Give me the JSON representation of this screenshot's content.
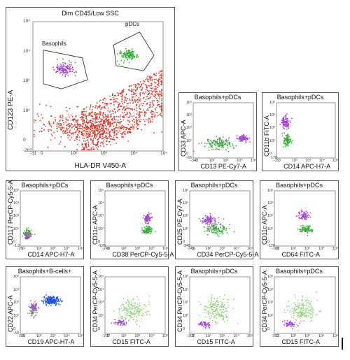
{
  "colors": {
    "granulocytes": "#d93a2b",
    "basophils": "#a23fd6",
    "pdcs": "#2faa2f",
    "green_light": "#8fd07a",
    "bcells": "#1f4fd9",
    "gray": "#8a8a8a",
    "frame": "#555555"
  },
  "chart_data": [
    {
      "type": "scatter",
      "title": "Dim CD45/Low SSC",
      "xlabel": "HLA-DR V450-A",
      "ylabel": "CD123 PE-A",
      "xticks": [
        "-31",
        "0",
        "10²",
        "10³",
        "10⁴",
        "10⁵"
      ],
      "yticks": [
        "-282",
        "0",
        "10²",
        "10³",
        "10⁴",
        "10⁵"
      ],
      "gates": [
        "Basophils",
        "pDCs"
      ],
      "series": [
        {
          "color": "granulocytes",
          "cluster": [
            0.7,
            0.3,
            0.25,
            0.17
          ],
          "n": 900
        },
        {
          "color": "granulocytes",
          "cluster": [
            0.4,
            0.18,
            0.3,
            0.1
          ],
          "n": 500
        },
        {
          "color": "basophils",
          "cluster": [
            0.24,
            0.63,
            0.06,
            0.04
          ],
          "n": 120
        },
        {
          "color": "pdcs",
          "cluster": [
            0.73,
            0.74,
            0.06,
            0.04
          ],
          "n": 110
        }
      ]
    },
    {
      "type": "scatter",
      "title": "Basophils+pDCs",
      "xlabel": "CD13 PE-Cy7-A",
      "ylabel": "CD33 APC-A",
      "xticks": [
        "-342",
        "0",
        "10²",
        "10³",
        "10⁴",
        "10⁵"
      ],
      "yticks": [
        "-65",
        "0",
        "10²",
        "10³",
        "10⁴",
        "10⁵"
      ],
      "series": [
        {
          "color": "pdcs",
          "cluster": [
            0.4,
            0.25,
            0.2,
            0.08
          ],
          "n": 130
        },
        {
          "color": "gray",
          "cluster": [
            0.5,
            0.3,
            0.1,
            0.05
          ],
          "n": 25
        },
        {
          "color": "basophils",
          "cluster": [
            0.82,
            0.35,
            0.07,
            0.05
          ],
          "n": 80
        }
      ]
    },
    {
      "type": "scatter",
      "title": "Basophils+pDCs",
      "xlabel": "CD14 APC-H7-A",
      "ylabel": "CD11b FITC-A",
      "xticks": [
        "-29",
        "0",
        "10²",
        "10³",
        "10⁴",
        "10⁵"
      ],
      "yticks": [
        "-178",
        "0",
        "10²",
        "10³",
        "10⁴",
        "10⁵"
      ],
      "series": [
        {
          "color": "basophils",
          "cluster": [
            0.15,
            0.65,
            0.06,
            0.1
          ],
          "n": 100
        },
        {
          "color": "pdcs",
          "cluster": [
            0.18,
            0.32,
            0.05,
            0.08
          ],
          "n": 90
        }
      ]
    },
    {
      "type": "scatter",
      "title": "Basophils+pDCs",
      "xlabel": "CD14 APC-H7-A",
      "ylabel": "CD117 PerCP-Cy5-5-A",
      "xticks": [
        "-29",
        "0",
        "10²",
        "10³",
        "10⁴",
        "10⁵"
      ],
      "yticks": [
        "-1.0",
        "0",
        "10²",
        "10³",
        "10⁴",
        "10⁵"
      ],
      "series": [
        {
          "color": "pdcs",
          "cluster": [
            0.12,
            0.22,
            0.05,
            0.06
          ],
          "n": 90
        },
        {
          "color": "basophils",
          "cluster": [
            0.12,
            0.18,
            0.04,
            0.04
          ],
          "n": 60
        },
        {
          "color": "gray",
          "cluster": [
            0.14,
            0.2,
            0.05,
            0.05
          ],
          "n": 30
        }
      ]
    },
    {
      "type": "scatter",
      "title": "Basophils+pDCs",
      "xlabel": "CD38 PerCP-Cy5-5-A",
      "ylabel": "CD11c APC-A",
      "xticks": [
        "-243",
        "0",
        "10²",
        "10³",
        "10⁴",
        "10⁵"
      ],
      "yticks": [
        "-126",
        "0",
        "10²",
        "10³",
        "10⁴",
        "10⁵"
      ],
      "series": [
        {
          "color": "basophils",
          "cluster": [
            0.7,
            0.5,
            0.05,
            0.07
          ],
          "n": 80
        },
        {
          "color": "pdcs",
          "cluster": [
            0.7,
            0.28,
            0.06,
            0.06
          ],
          "n": 90
        }
      ]
    },
    {
      "type": "scatter",
      "title": "Basophils+pDCs",
      "xlabel": "CD34 PerCP-Cy5-5-A",
      "ylabel": "CD25 PE-Cy7-A",
      "xticks": [
        "-243",
        "0",
        "10²",
        "10³",
        "10⁴",
        "10⁵"
      ],
      "yticks": [
        "-340",
        "0",
        "10²",
        "10³",
        "10⁴",
        "10⁵"
      ],
      "series": [
        {
          "color": "basophils",
          "cluster": [
            0.32,
            0.48,
            0.12,
            0.06
          ],
          "n": 90
        },
        {
          "color": "pdcs",
          "cluster": [
            0.45,
            0.3,
            0.15,
            0.08
          ],
          "n": 100
        },
        {
          "color": "gray",
          "cluster": [
            0.35,
            0.35,
            0.1,
            0.08
          ],
          "n": 30
        }
      ]
    },
    {
      "type": "scatter",
      "title": "Basophils+pDCs",
      "xlabel": "CD64 FITC-A",
      "ylabel": "CD11c APC-A",
      "xticks": [
        "-160",
        "0",
        "10²",
        "10³",
        "10⁴",
        "10⁵"
      ],
      "yticks": [
        "-126",
        "0",
        "10²",
        "10³",
        "10⁴",
        "10⁵"
      ],
      "series": [
        {
          "color": "basophils",
          "cluster": [
            0.48,
            0.55,
            0.08,
            0.07
          ],
          "n": 80
        },
        {
          "color": "pdcs",
          "cluster": [
            0.52,
            0.3,
            0.09,
            0.06
          ],
          "n": 90
        }
      ]
    },
    {
      "type": "scatter",
      "title": "Basophils+B-cells+",
      "xlabel": "CD19 APC-H7-A",
      "ylabel": "CD22 APC-A",
      "xticks": [
        "-205",
        "0",
        "10²",
        "10³",
        "10⁴",
        "10⁵"
      ],
      "yticks": [
        "-69",
        "0",
        "10²",
        "10³",
        "10⁴",
        "10⁵"
      ],
      "series": [
        {
          "color": "bcells",
          "cluster": [
            0.52,
            0.58,
            0.1,
            0.06
          ],
          "n": 180
        },
        {
          "color": "basophils",
          "cluster": [
            0.22,
            0.48,
            0.05,
            0.05
          ],
          "n": 70
        },
        {
          "color": "gray",
          "cluster": [
            0.22,
            0.38,
            0.05,
            0.1
          ],
          "n": 60
        }
      ]
    },
    {
      "type": "scatter",
      "title": "",
      "xlabel": "CD15 FITC-A",
      "ylabel": "CD34 PerCP-Cy5-5-A",
      "xticks": [
        "-202",
        "0",
        "10²",
        "10³",
        "10⁴",
        "10⁵"
      ],
      "yticks": [
        "",
        "0",
        "10²",
        "10³",
        "10⁴",
        "10⁵"
      ],
      "series": [
        {
          "color": "green_light",
          "cluster": [
            0.45,
            0.4,
            0.2,
            0.18
          ],
          "n": 170
        },
        {
          "color": "basophils",
          "cluster": [
            0.25,
            0.18,
            0.08,
            0.05
          ],
          "n": 50
        }
      ]
    },
    {
      "type": "scatter",
      "title": "Basophils+pDCs",
      "xlabel": "CD15 FITC-A",
      "ylabel": "CD34 PerCP-Cy5-5-A",
      "xticks": [
        "-202",
        "0",
        "10²",
        "10³",
        "10⁴",
        "10⁵"
      ],
      "yticks": [
        "",
        "0",
        "10²",
        "10³",
        "10⁴",
        "10⁵"
      ],
      "series": [
        {
          "color": "green_light",
          "cluster": [
            0.45,
            0.4,
            0.2,
            0.18
          ],
          "n": 170
        },
        {
          "color": "basophils",
          "cluster": [
            0.25,
            0.16,
            0.08,
            0.05
          ],
          "n": 50
        }
      ]
    },
    {
      "type": "scatter",
      "title": "Basophils+pDCs",
      "xlabel": "CD15 FITC-A",
      "ylabel": "CD34 PerCP-Cy5-5-A",
      "xticks": [
        "-202",
        "0",
        "10²",
        "10³",
        "10⁴",
        "10⁵"
      ],
      "yticks": [
        "",
        "0",
        "10²",
        "10³",
        "10⁴",
        "10⁵"
      ],
      "series": [
        {
          "color": "green_light",
          "cluster": [
            0.45,
            0.4,
            0.2,
            0.18
          ],
          "n": 170
        },
        {
          "color": "basophils",
          "cluster": [
            0.25,
            0.17,
            0.08,
            0.05
          ],
          "n": 50
        }
      ]
    }
  ]
}
